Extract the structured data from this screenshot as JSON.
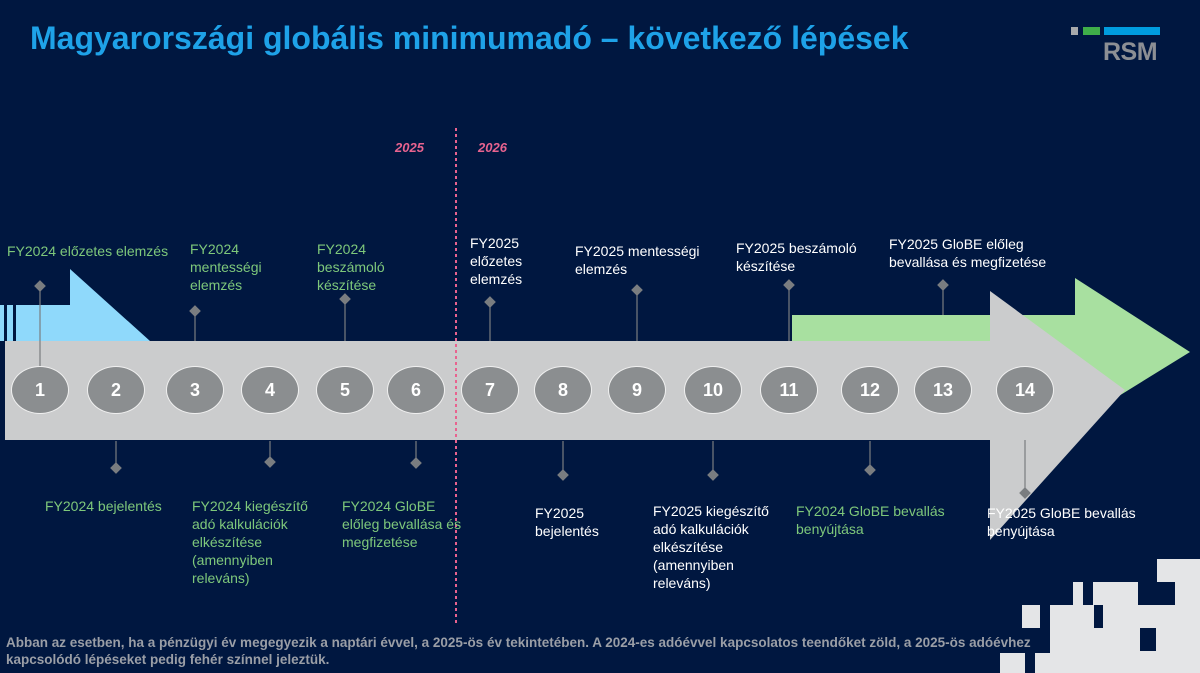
{
  "title": "Magyarországi globális minimumadó – következő lépések",
  "logo": {
    "text": "RSM",
    "colors": [
      "#a7a9ac",
      "#3fae49",
      "#009cde"
    ]
  },
  "years": {
    "left": "2025",
    "right": "2026"
  },
  "colors": {
    "background": "#001740",
    "title": "#1ea2e8",
    "fy2024_text": "#7ec87b",
    "fy2025_text": "#ffffff",
    "divider": "#e8638f",
    "main_arrow": "#cbcccd",
    "blue_arrow": "#8fd9fb",
    "green_arrow": "#a8e0a0",
    "step_circle": "#8b8e90"
  },
  "steps": [
    {
      "number": "1",
      "label": "FY2024 előzetes elemzés",
      "group": "FY2024"
    },
    {
      "number": "2",
      "label": "FY2024 bejelentés",
      "group": "FY2024"
    },
    {
      "number": "3",
      "label": "FY2024 mentességi elemzés",
      "group": "FY2024"
    },
    {
      "number": "4",
      "label": "FY2024 kiegészítő adó kalkulációk elkészítése (amennyiben releváns)",
      "group": "FY2024"
    },
    {
      "number": "5",
      "label": "FY2024 beszámoló készítése",
      "group": "FY2024"
    },
    {
      "number": "6",
      "label": "FY2024 GloBE előleg bevallása és megfizetése",
      "group": "FY2024"
    },
    {
      "number": "7",
      "label": "FY2025 előzetes elemzés",
      "group": "FY2025"
    },
    {
      "number": "8",
      "label": "FY2025 bejelentés",
      "group": "FY2025"
    },
    {
      "number": "9",
      "label": "FY2025 mentességi elemzés",
      "group": "FY2025"
    },
    {
      "number": "10",
      "label": "FY2025 kiegészítő adó kalkulációk elkészítése (amennyiben releváns)",
      "group": "FY2025"
    },
    {
      "number": "11",
      "label": "FY2025 beszámoló készítése",
      "group": "FY2025"
    },
    {
      "number": "12",
      "label": "FY2024 GloBE bevallás benyújtása",
      "group": "FY2024"
    },
    {
      "number": "13",
      "label": "FY2025 GloBE előleg bevallása és megfizetése",
      "group": "FY2025"
    },
    {
      "number": "14",
      "label": "FY2025 GloBE bevallás benyújtása",
      "group": "FY2025"
    }
  ],
  "footnote": "Abban az esetben, ha a pénzügyi év megegyezik a naptári évvel, a 2025-ös év tekintetében. A 2024-es adóévvel kapcsolatos teendőket zöld, a 2025-ös adóévhez kapcsolódó lépéseket pedig fehér színnel jeleztük."
}
